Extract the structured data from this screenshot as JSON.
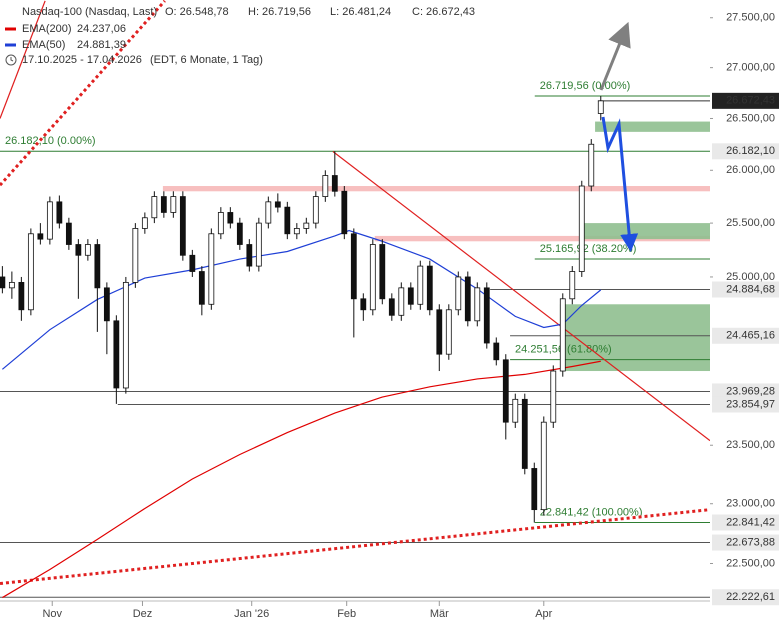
{
  "chart_data": {
    "type": "candlestick",
    "title": "Nasdaq-100 (Nasdaq, Last)",
    "ohlc_labels": [
      "O: 26.548,78",
      "H: 26.719,56",
      "L: 26.481,24",
      "C: 26.672,43"
    ],
    "period": "17.10.2025 - 17.04.2026",
    "period_note": "(EDT, 6 Monate, 1 Tag)",
    "log_scale": true,
    "grid": false,
    "up_color": "#ffffff",
    "down_color": "#111111",
    "ylim": [
      22200,
      27680
    ],
    "yticks": [
      {
        "value": 22500,
        "label": "22.500,00"
      },
      {
        "value": 23000,
        "label": "23.000,00"
      },
      {
        "value": 23500,
        "label": "23.500,00"
      },
      {
        "value": 25000,
        "label": "25.000,00"
      },
      {
        "value": 25500,
        "label": "25.500,00"
      },
      {
        "value": 26000,
        "label": "26.000,00"
      },
      {
        "value": 26500,
        "label": "26.500,00"
      },
      {
        "value": 27000,
        "label": "27.000,00"
      },
      {
        "value": 27500,
        "label": "27.500,00"
      }
    ],
    "xlim": [
      -0.5,
      149
    ],
    "xticks": [
      {
        "value": 10.5,
        "label": "Nov"
      },
      {
        "value": 29.5,
        "label": "Dez"
      },
      {
        "value": 52.5,
        "label": "Jan '26"
      },
      {
        "value": 72.5,
        "label": "Feb"
      },
      {
        "value": 92,
        "label": "Mär"
      },
      {
        "value": 114,
        "label": "Apr"
      }
    ],
    "x": [
      0,
      2,
      4,
      6,
      8,
      10,
      12,
      14,
      16,
      18,
      20,
      22,
      24,
      26,
      28,
      30,
      32,
      34,
      36,
      38,
      40,
      42,
      44,
      46,
      48,
      50,
      52,
      54,
      56,
      58,
      60,
      62,
      64,
      66,
      68,
      70,
      72,
      74,
      76,
      78,
      80,
      82,
      84,
      86,
      88,
      90,
      92,
      94,
      96,
      98,
      100,
      102,
      104,
      106,
      108,
      110,
      112,
      114,
      116,
      118,
      120,
      122,
      124,
      126
    ],
    "open": [
      25000,
      24900,
      24950,
      24700,
      25400,
      25350,
      25700,
      25500,
      25300,
      25200,
      25300,
      24900,
      24600,
      24000,
      24950,
      25450,
      25550,
      25750,
      25600,
      25750,
      25200,
      25050,
      24750,
      25400,
      25600,
      25500,
      25300,
      25100,
      25500,
      25700,
      25650,
      25400,
      25450,
      25500,
      25750,
      25950,
      25800,
      25400,
      24800,
      24700,
      25300,
      24800,
      24650,
      24900,
      24750,
      25100,
      24700,
      24300,
      24700,
      25000,
      24600,
      24900,
      24400,
      24250,
      23700,
      23900,
      23300,
      22950,
      23700,
      24150,
      24800,
      25050,
      25850,
      26548.78
    ],
    "high": [
      25100,
      25050,
      25000,
      25450,
      25500,
      25750,
      25760,
      25550,
      25350,
      25350,
      25350,
      24950,
      24650,
      25000,
      25500,
      25600,
      25800,
      25800,
      25800,
      25800,
      25250,
      25100,
      25450,
      25650,
      25650,
      25550,
      25350,
      25550,
      25750,
      25780,
      25700,
      25500,
      25550,
      25800,
      26000,
      26182,
      25850,
      25450,
      24850,
      25350,
      25350,
      24850,
      24950,
      24950,
      25150,
      25150,
      24750,
      24750,
      25050,
      25050,
      24950,
      24950,
      24450,
      24300,
      23950,
      23950,
      23350,
      23750,
      24200,
      24850,
      25100,
      25900,
      26300,
      26719.56
    ],
    "low": [
      24850,
      24800,
      24600,
      24650,
      25300,
      25300,
      25450,
      25250,
      24800,
      25150,
      24500,
      24300,
      23860,
      23950,
      24900,
      25400,
      25500,
      25550,
      25550,
      25150,
      25000,
      24650,
      24700,
      25350,
      25450,
      25250,
      25050,
      25050,
      25450,
      25600,
      25350,
      25350,
      25400,
      25450,
      25700,
      25750,
      25350,
      24450,
      24600,
      24650,
      24750,
      24600,
      24600,
      24700,
      24700,
      24650,
      24150,
      24250,
      24650,
      24550,
      24550,
      24350,
      24200,
      23550,
      23650,
      23250,
      22841.42,
      22900,
      23650,
      24100,
      24750,
      25000,
      25800,
      26481.24
    ],
    "close": [
      24900,
      24950,
      24700,
      25400,
      25350,
      25700,
      25500,
      25300,
      25200,
      25300,
      24900,
      24600,
      24000,
      24950,
      25450,
      25550,
      25750,
      25600,
      25750,
      25200,
      25050,
      24750,
      25400,
      25600,
      25500,
      25300,
      25100,
      25500,
      25700,
      25650,
      25400,
      25450,
      25500,
      25750,
      25950,
      25800,
      25400,
      24800,
      24700,
      25300,
      24800,
      24650,
      24900,
      24750,
      25100,
      24700,
      24300,
      24700,
      25000,
      24600,
      24900,
      24400,
      24250,
      23700,
      23900,
      23300,
      22950,
      23700,
      24150,
      24800,
      25050,
      25850,
      26250,
      26672.43
    ],
    "series": [
      {
        "name": "EMA(200)",
        "last_label": "24.237,06",
        "color": "#e00000",
        "x": [
          0,
          10,
          20,
          30,
          40,
          50,
          60,
          70,
          80,
          90,
          100,
          110,
          120,
          126
        ],
        "values": [
          22220,
          22450,
          22700,
          22960,
          23210,
          23420,
          23610,
          23780,
          23920,
          24010,
          24080,
          24120,
          24190,
          24237.06
        ]
      },
      {
        "name": "EMA(50)",
        "last_label": "24.881,39",
        "color": "#1f3fd6",
        "x": [
          0,
          10,
          20,
          30,
          40,
          50,
          60,
          70,
          73,
          80,
          90,
          100,
          108,
          114,
          118,
          122,
          126
        ],
        "values": [
          24165,
          24520,
          24794,
          24990,
          25065,
          25165,
          25235,
          25380,
          25430,
          25330,
          25165,
          24890,
          24640,
          24540,
          24570,
          24740,
          24881.39
        ]
      }
    ],
    "zones": [
      {
        "from": 33.8,
        "low": 25800,
        "high": 25850,
        "color": "#f6b8b8"
      },
      {
        "from": 78.4,
        "low": 25330,
        "high": 25380,
        "color": "#f6b8b8"
      },
      {
        "from": 124.8,
        "low": 26370,
        "high": 26470,
        "color": "#8fbf8f"
      },
      {
        "from": 121.6,
        "low": 25350,
        "high": 25500,
        "color": "#8fbf8f"
      },
      {
        "from": 117.4,
        "low": 24150,
        "high": 24750,
        "color": "#8fbf8f"
      }
    ],
    "levels": [
      {
        "value": 26719.56,
        "from": 112.1,
        "color": "#2e7d32",
        "note": "26.719,56 (0.00%)"
      },
      {
        "value": 26672.43,
        "from": 125.4,
        "color": "#333333",
        "tag": "26.672,43",
        "current": true
      },
      {
        "value": 26182.1,
        "from": -0.5,
        "color": "#2e7d32",
        "tag": "26.182,10",
        "note": "26.182,10 (0.00%)"
      },
      {
        "value": 25165.92,
        "from": 112.1,
        "color": "#2e7d32",
        "note": "25.165,92 (38.20%)"
      },
      {
        "value": 24884.68,
        "from": 102.7,
        "color": "#555555",
        "tag": "24.884,68"
      },
      {
        "value": 24465.16,
        "from": 106.9,
        "color": "#555555",
        "tag": "24.465,16"
      },
      {
        "value": 24251.56,
        "from": 106.9,
        "color": "#2e7d32",
        "note": "24.251,56 (61.80%)"
      },
      {
        "value": 23969.28,
        "from": -0.5,
        "color": "#555555",
        "tag": "23.969,28"
      },
      {
        "value": 23854.97,
        "from": 24.3,
        "color": "#555555",
        "tag": "23.854,97"
      },
      {
        "value": 22841.42,
        "from": 112.1,
        "color": "#2e7d32",
        "tag": "22.841,42",
        "note": "22.841,42 (100.00%)"
      },
      {
        "value": 22673.88,
        "from": -0.5,
        "color": "#555555",
        "tag": "22.673,88"
      },
      {
        "value": 22222.61,
        "from": -0.5,
        "color": "#555555",
        "tag": "22.222,61"
      }
    ],
    "trend_lines": [
      {
        "x": [
          69.6,
          149
        ],
        "values": [
          26180,
          23540
        ],
        "color": "#e02020",
        "dashed": false
      },
      {
        "x": [
          -0.5,
          34.2
        ],
        "values": [
          25858,
          27671
        ],
        "color": "#e02020",
        "dashed": true
      },
      {
        "x": [
          -0.5,
          149
        ],
        "values": [
          22335,
          22950
        ],
        "color": "#e02020",
        "dashed": true
      },
      {
        "x": [
          -0.5,
          9
        ],
        "values": [
          26500,
          27671
        ],
        "color": "#e02020",
        "dashed": false
      }
    ]
  }
}
